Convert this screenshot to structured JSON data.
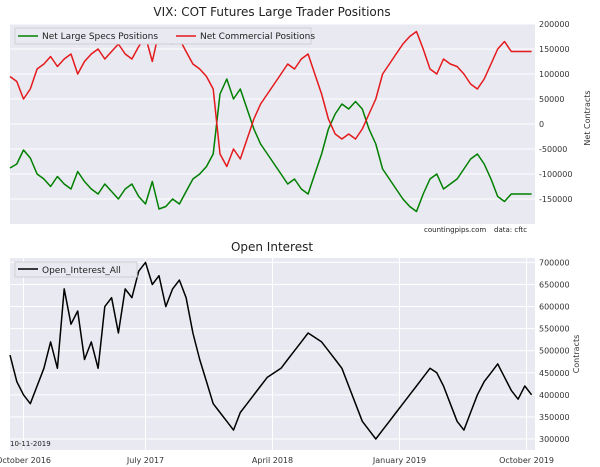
{
  "date_stamp": "10-11-2019",
  "colors": {
    "plot_bg": "#e9e9f1",
    "grid": "#ffffff",
    "specs": "#008000",
    "commercial": "#e41a1c",
    "open_interest": "#000000",
    "legend_bg": "#e9e9f1"
  },
  "chart_data": [
    {
      "type": "line",
      "title": "VIX: COT Futures Large Trader Positions",
      "ylabel": "Net Contracts",
      "ylim": [
        -200000,
        200000
      ],
      "yticks": [
        -150000,
        -100000,
        -50000,
        0,
        50000,
        100000,
        150000,
        200000
      ],
      "ytick_labels": [
        "-150000",
        "-100000",
        "-50000",
        "0",
        "50000",
        "100000",
        "150000",
        "200000"
      ],
      "legend": [
        "Net Large Specs Positions",
        "Net Commercial Positions"
      ],
      "annotations": [
        "countingpips.com",
        "data: cftc"
      ],
      "x_range": [
        2016.7,
        2019.8
      ],
      "series": [
        {
          "name": "Net Large Specs Positions",
          "x": [
            2016.7,
            2016.74,
            2016.78,
            2016.82,
            2016.86,
            2016.9,
            2016.94,
            2016.98,
            2017.02,
            2017.06,
            2017.1,
            2017.14,
            2017.18,
            2017.22,
            2017.26,
            2017.3,
            2017.34,
            2017.38,
            2017.42,
            2017.46,
            2017.5,
            2017.54,
            2017.58,
            2017.62,
            2017.66,
            2017.7,
            2017.74,
            2017.78,
            2017.82,
            2017.86,
            2017.9,
            2017.94,
            2017.98,
            2018.02,
            2018.06,
            2018.1,
            2018.14,
            2018.18,
            2018.22,
            2018.26,
            2018.3,
            2018.34,
            2018.38,
            2018.42,
            2018.46,
            2018.5,
            2018.54,
            2018.58,
            2018.62,
            2018.66,
            2018.7,
            2018.74,
            2018.78,
            2018.82,
            2018.86,
            2018.9,
            2018.94,
            2018.98,
            2019.02,
            2019.06,
            2019.1,
            2019.14,
            2019.18,
            2019.22,
            2019.26,
            2019.3,
            2019.34,
            2019.38,
            2019.42,
            2019.46,
            2019.5,
            2019.54,
            2019.58,
            2019.62,
            2019.66,
            2019.7,
            2019.74,
            2019.78
          ],
          "values": [
            -88000,
            -80000,
            -52000,
            -68000,
            -100000,
            -110000,
            -125000,
            -105000,
            -120000,
            -130000,
            -95000,
            -115000,
            -130000,
            -140000,
            -120000,
            -135000,
            -150000,
            -130000,
            -120000,
            -145000,
            -160000,
            -115000,
            -170000,
            -165000,
            -150000,
            -160000,
            -135000,
            -110000,
            -100000,
            -85000,
            -60000,
            60000,
            90000,
            50000,
            70000,
            30000,
            -10000,
            -40000,
            -60000,
            -80000,
            -100000,
            -120000,
            -110000,
            -130000,
            -140000,
            -100000,
            -60000,
            -10000,
            20000,
            40000,
            30000,
            45000,
            30000,
            -10000,
            -40000,
            -90000,
            -110000,
            -130000,
            -150000,
            -165000,
            -175000,
            -140000,
            -110000,
            -100000,
            -130000,
            -120000,
            -110000,
            -90000,
            -70000,
            -60000,
            -80000,
            -110000,
            -145000,
            -155000,
            -140000,
            -140000,
            -140000,
            -140000
          ]
        },
        {
          "name": "Net Commercial Positions",
          "x": [
            2016.7,
            2016.74,
            2016.78,
            2016.82,
            2016.86,
            2016.9,
            2016.94,
            2016.98,
            2017.02,
            2017.06,
            2017.1,
            2017.14,
            2017.18,
            2017.22,
            2017.26,
            2017.3,
            2017.34,
            2017.38,
            2017.42,
            2017.46,
            2017.5,
            2017.54,
            2017.58,
            2017.62,
            2017.66,
            2017.7,
            2017.74,
            2017.78,
            2017.82,
            2017.86,
            2017.9,
            2017.94,
            2017.98,
            2018.02,
            2018.06,
            2018.1,
            2018.14,
            2018.18,
            2018.22,
            2018.26,
            2018.3,
            2018.34,
            2018.38,
            2018.42,
            2018.46,
            2018.5,
            2018.54,
            2018.58,
            2018.62,
            2018.66,
            2018.7,
            2018.74,
            2018.78,
            2018.82,
            2018.86,
            2018.9,
            2018.94,
            2018.98,
            2019.02,
            2019.06,
            2019.1,
            2019.14,
            2019.18,
            2019.22,
            2019.26,
            2019.3,
            2019.34,
            2019.38,
            2019.42,
            2019.46,
            2019.5,
            2019.54,
            2019.58,
            2019.62,
            2019.66,
            2019.7,
            2019.74,
            2019.78
          ],
          "values": [
            95000,
            85000,
            50000,
            70000,
            110000,
            120000,
            135000,
            115000,
            130000,
            140000,
            100000,
            125000,
            140000,
            150000,
            130000,
            145000,
            160000,
            140000,
            130000,
            155000,
            175000,
            125000,
            185000,
            175000,
            160000,
            170000,
            145000,
            120000,
            110000,
            95000,
            70000,
            -60000,
            -85000,
            -50000,
            -70000,
            -30000,
            10000,
            40000,
            60000,
            80000,
            100000,
            120000,
            110000,
            130000,
            140000,
            100000,
            60000,
            10000,
            -20000,
            -30000,
            -20000,
            -30000,
            -10000,
            20000,
            50000,
            100000,
            120000,
            140000,
            160000,
            175000,
            185000,
            150000,
            110000,
            100000,
            130000,
            120000,
            115000,
            100000,
            80000,
            70000,
            90000,
            120000,
            150000,
            165000,
            145000,
            145000,
            145000,
            145000
          ]
        }
      ]
    },
    {
      "type": "line",
      "title": "Open Interest",
      "ylabel": "Contracts",
      "ylim": [
        275000,
        710000
      ],
      "yticks": [
        300000,
        350000,
        400000,
        450000,
        500000,
        550000,
        600000,
        650000,
        700000
      ],
      "ytick_labels": [
        "300000",
        "350000",
        "400000",
        "450000",
        "500000",
        "550000",
        "600000",
        "650000",
        "700000"
      ],
      "legend": [
        "Open_Interest_All"
      ],
      "x_range": [
        2016.7,
        2019.8
      ],
      "xtick_positions": [
        2016.78,
        2017.5,
        2018.25,
        2019.0,
        2019.75
      ],
      "xtick_labels": [
        "October 2016",
        "July 2017",
        "April 2018",
        "January 2019",
        "October 2019"
      ],
      "series": [
        {
          "name": "Open_Interest_All",
          "x": [
            2016.7,
            2016.74,
            2016.78,
            2016.82,
            2016.86,
            2016.9,
            2016.94,
            2016.98,
            2017.02,
            2017.06,
            2017.1,
            2017.14,
            2017.18,
            2017.22,
            2017.26,
            2017.3,
            2017.34,
            2017.38,
            2017.42,
            2017.46,
            2017.5,
            2017.54,
            2017.58,
            2017.62,
            2017.66,
            2017.7,
            2017.74,
            2017.78,
            2017.82,
            2017.86,
            2017.9,
            2017.94,
            2017.98,
            2018.02,
            2018.06,
            2018.1,
            2018.14,
            2018.18,
            2018.22,
            2018.26,
            2018.3,
            2018.34,
            2018.38,
            2018.42,
            2018.46,
            2018.5,
            2018.54,
            2018.58,
            2018.62,
            2018.66,
            2018.7,
            2018.74,
            2018.78,
            2018.82,
            2018.86,
            2018.9,
            2018.94,
            2018.98,
            2019.02,
            2019.06,
            2019.1,
            2019.14,
            2019.18,
            2019.22,
            2019.26,
            2019.3,
            2019.34,
            2019.38,
            2019.42,
            2019.46,
            2019.5,
            2019.54,
            2019.58,
            2019.62,
            2019.66,
            2019.7,
            2019.74,
            2019.78
          ],
          "values": [
            490000,
            430000,
            400000,
            380000,
            420000,
            460000,
            520000,
            460000,
            640000,
            560000,
            590000,
            480000,
            520000,
            460000,
            600000,
            620000,
            540000,
            640000,
            620000,
            680000,
            700000,
            650000,
            670000,
            600000,
            640000,
            660000,
            620000,
            540000,
            480000,
            430000,
            380000,
            360000,
            340000,
            320000,
            360000,
            380000,
            400000,
            420000,
            440000,
            450000,
            460000,
            480000,
            500000,
            520000,
            540000,
            530000,
            520000,
            500000,
            480000,
            460000,
            420000,
            380000,
            340000,
            320000,
            300000,
            320000,
            340000,
            360000,
            380000,
            400000,
            420000,
            440000,
            460000,
            450000,
            420000,
            380000,
            340000,
            320000,
            360000,
            400000,
            430000,
            450000,
            470000,
            440000,
            410000,
            390000,
            420000,
            400000
          ]
        }
      ]
    }
  ]
}
